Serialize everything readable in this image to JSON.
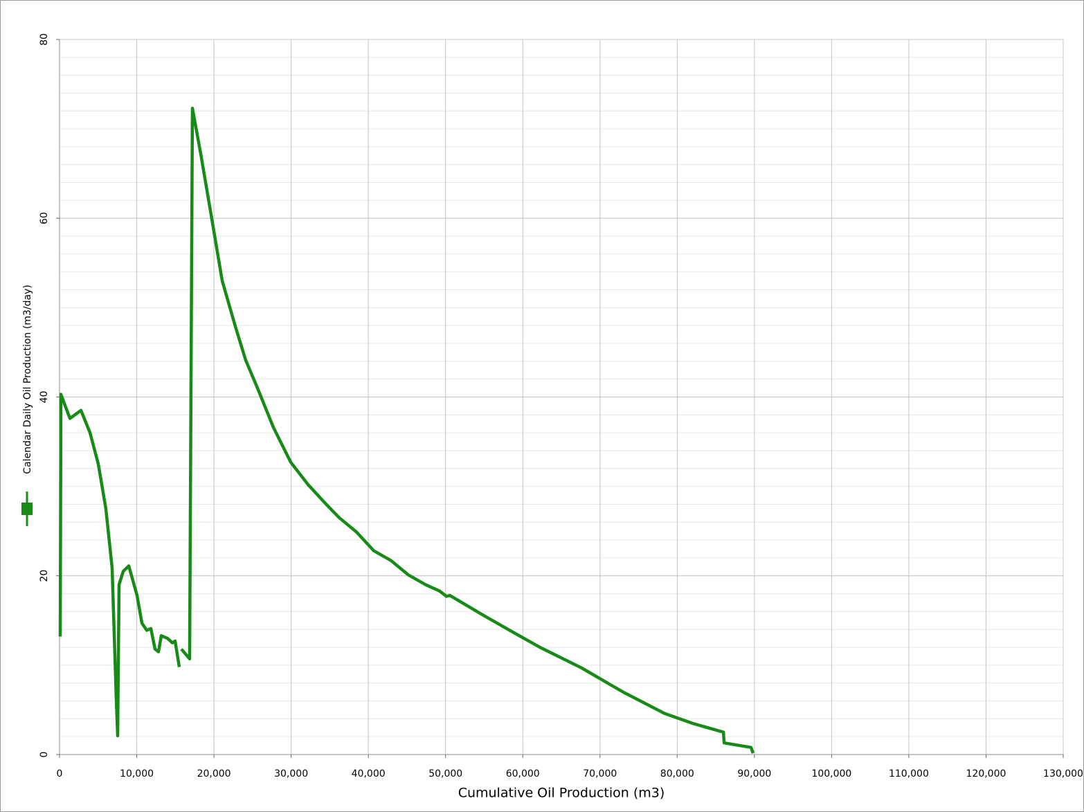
{
  "chart_data": {
    "type": "line",
    "x_label": "Cumulative Oil Production (m3)",
    "series": [
      {
        "name": "Calendar Daily Oil Production (m3/day)",
        "color": "#178a17",
        "x": [
          90,
          180,
          1350,
          2780,
          3950,
          5020,
          6000,
          6810,
          7350,
          7530,
          7710,
          8250,
          8970,
          10040,
          10670,
          11300,
          11830,
          12370,
          12820,
          13180,
          13990,
          14610,
          14970,
          15510,
          15600,
          15780,
          16850,
          17210,
          18290,
          19630,
          21070,
          22770,
          24120,
          25640,
          27700,
          29950,
          32190,
          34430,
          36220,
          38460,
          40700,
          42940,
          45180,
          47420,
          49220,
          50110,
          50560,
          55050,
          59530,
          62220,
          67600,
          72980,
          78360,
          81950,
          85990,
          86080,
          89560,
          89830
        ],
        "values": [
          13.2,
          40.3,
          37.6,
          38.5,
          36.0,
          32.5,
          27.5,
          20.9,
          6.2,
          2.1,
          19.0,
          20.5,
          21.1,
          17.8,
          14.7,
          13.9,
          14.1,
          11.8,
          11.5,
          13.3,
          13.0,
          12.5,
          12.7,
          9.8,
          null,
          11.8,
          10.7,
          72.3,
          67.2,
          60.4,
          53.0,
          47.9,
          44.1,
          41.0,
          36.6,
          32.7,
          30.2,
          28.1,
          26.5,
          24.9,
          22.8,
          21.7,
          20.1,
          19.0,
          18.3,
          17.7,
          17.8,
          15.5,
          13.3,
          12.0,
          9.7,
          7.0,
          4.6,
          3.5,
          2.5,
          1.3,
          0.8,
          0.15
        ]
      }
    ],
    "xlim": [
      0,
      130000
    ],
    "xticks": [
      0,
      {
        "value": 10000,
        "label": "10,000"
      },
      {
        "value": 20000,
        "label": "20,000"
      },
      {
        "value": 30000,
        "label": "30,000"
      },
      {
        "value": 40000,
        "label": "40,000"
      },
      {
        "value": 50000,
        "label": "50,000"
      },
      {
        "value": 60000,
        "label": "60,000"
      },
      {
        "value": 70000,
        "label": "70,000"
      },
      {
        "value": 80000,
        "label": "80,000"
      },
      {
        "value": 90000,
        "label": "90,000"
      },
      {
        "value": 100000,
        "label": "100,000"
      },
      {
        "value": 110000,
        "label": "110,000"
      },
      {
        "value": 120000,
        "label": "120,000"
      },
      {
        "value": 130000,
        "label": "130,000"
      }
    ],
    "ylim": [
      0,
      80
    ],
    "yticks": [
      0,
      20,
      40,
      60,
      80
    ],
    "minor_ystep": 2,
    "grid": true
  }
}
